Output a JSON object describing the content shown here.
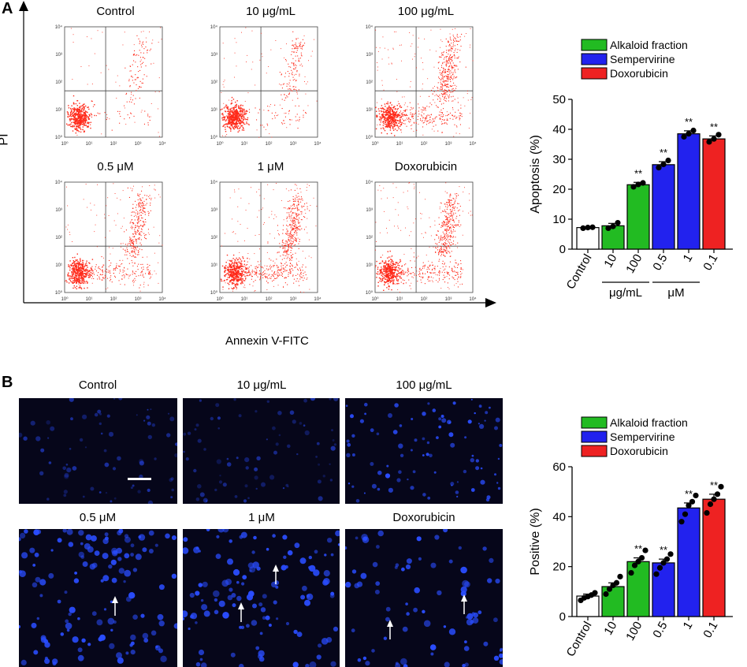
{
  "panel_a": {
    "label": "A",
    "y_axis_label": "PI",
    "x_axis_label": "Annexin V-FITC",
    "flow_plots": [
      {
        "title": "Control"
      },
      {
        "title": "10 μg/mL"
      },
      {
        "title": "100 μg/mL"
      },
      {
        "title": "0.5 μM"
      },
      {
        "title": "1 μM"
      },
      {
        "title": "Doxorubicin"
      }
    ],
    "flow_axis_ticks": [
      "10⁰",
      "10¹",
      "10²",
      "10³",
      "10⁴"
    ]
  },
  "panel_b": {
    "label": "B",
    "images": [
      {
        "title": "Control"
      },
      {
        "title": "10 μg/mL"
      },
      {
        "title": "100 μg/mL"
      },
      {
        "title": "0.5 μM"
      },
      {
        "title": "1 μM"
      },
      {
        "title": "Doxorubicin"
      }
    ]
  },
  "colors": {
    "scatter": "#ff2a1a",
    "green": "#22bb22",
    "blue": "#2222ee",
    "red": "#ee2222",
    "white": "#ffffff",
    "micro_bg": "#06061a",
    "cell": "#2a4dff"
  },
  "chart_data": [
    {
      "type": "bar",
      "ylabel": "Apoptosis  (%)",
      "ylim": [
        0,
        50
      ],
      "yticks": [
        0,
        10,
        20,
        30,
        40,
        50
      ],
      "categories": [
        "Control",
        "10",
        "100",
        "0.5",
        "1",
        "0.1"
      ],
      "values": [
        7.2,
        7.8,
        21.5,
        28.2,
        38.5,
        36.8
      ],
      "errors": [
        0.2,
        0.8,
        0.8,
        1.0,
        1.0,
        1.0
      ],
      "bar_colors": [
        "white",
        "green",
        "green",
        "blue",
        "blue",
        "red"
      ],
      "points": [
        [
          7.0,
          7.2,
          7.3
        ],
        [
          7.0,
          7.6,
          8.8
        ],
        [
          20.8,
          21.6,
          22.1
        ],
        [
          27.2,
          28.3,
          29.6
        ],
        [
          37.5,
          38.5,
          39.6
        ],
        [
          35.8,
          36.8,
          38.2
        ]
      ],
      "significance": [
        "",
        "",
        "**",
        "**",
        "**",
        "**"
      ],
      "group_labels": [
        {
          "text": "μg/mL",
          "from": 1,
          "to": 2
        },
        {
          "text": "μM",
          "from": 3,
          "to": 4
        }
      ],
      "legend": [
        "Alkaloid fraction",
        "Sempervirine",
        "Doxorubicin"
      ]
    },
    {
      "type": "bar",
      "ylabel": "Positive (%)",
      "ylim": [
        0,
        60
      ],
      "yticks": [
        0,
        20,
        40,
        60
      ],
      "categories": [
        "Control",
        "10",
        "100",
        "0.5",
        "1",
        "0.1"
      ],
      "values": [
        8.2,
        12.0,
        22.0,
        21.5,
        43.5,
        47.0
      ],
      "errors": [
        0.8,
        1.5,
        1.5,
        1.5,
        2.0,
        2.0
      ],
      "bar_colors": [
        "white",
        "green",
        "green",
        "blue",
        "blue",
        "red"
      ],
      "points": [
        [
          6.5,
          7.5,
          8.0,
          8.6,
          9.5
        ],
        [
          9.0,
          11.0,
          12.5,
          13.5,
          16.0
        ],
        [
          17.5,
          20.5,
          22.0,
          23.5,
          26.5
        ],
        [
          17.0,
          19.5,
          21.5,
          23.0,
          25.0
        ],
        [
          38.0,
          41.0,
          44.5,
          46.0,
          48.5
        ],
        [
          41.5,
          45.0,
          47.0,
          49.0,
          52.0
        ]
      ],
      "significance": [
        "",
        "",
        "**",
        "**",
        "**",
        "**"
      ],
      "legend": [
        "Alkaloid fraction",
        "Sempervirine",
        "Doxorubicin"
      ]
    }
  ]
}
